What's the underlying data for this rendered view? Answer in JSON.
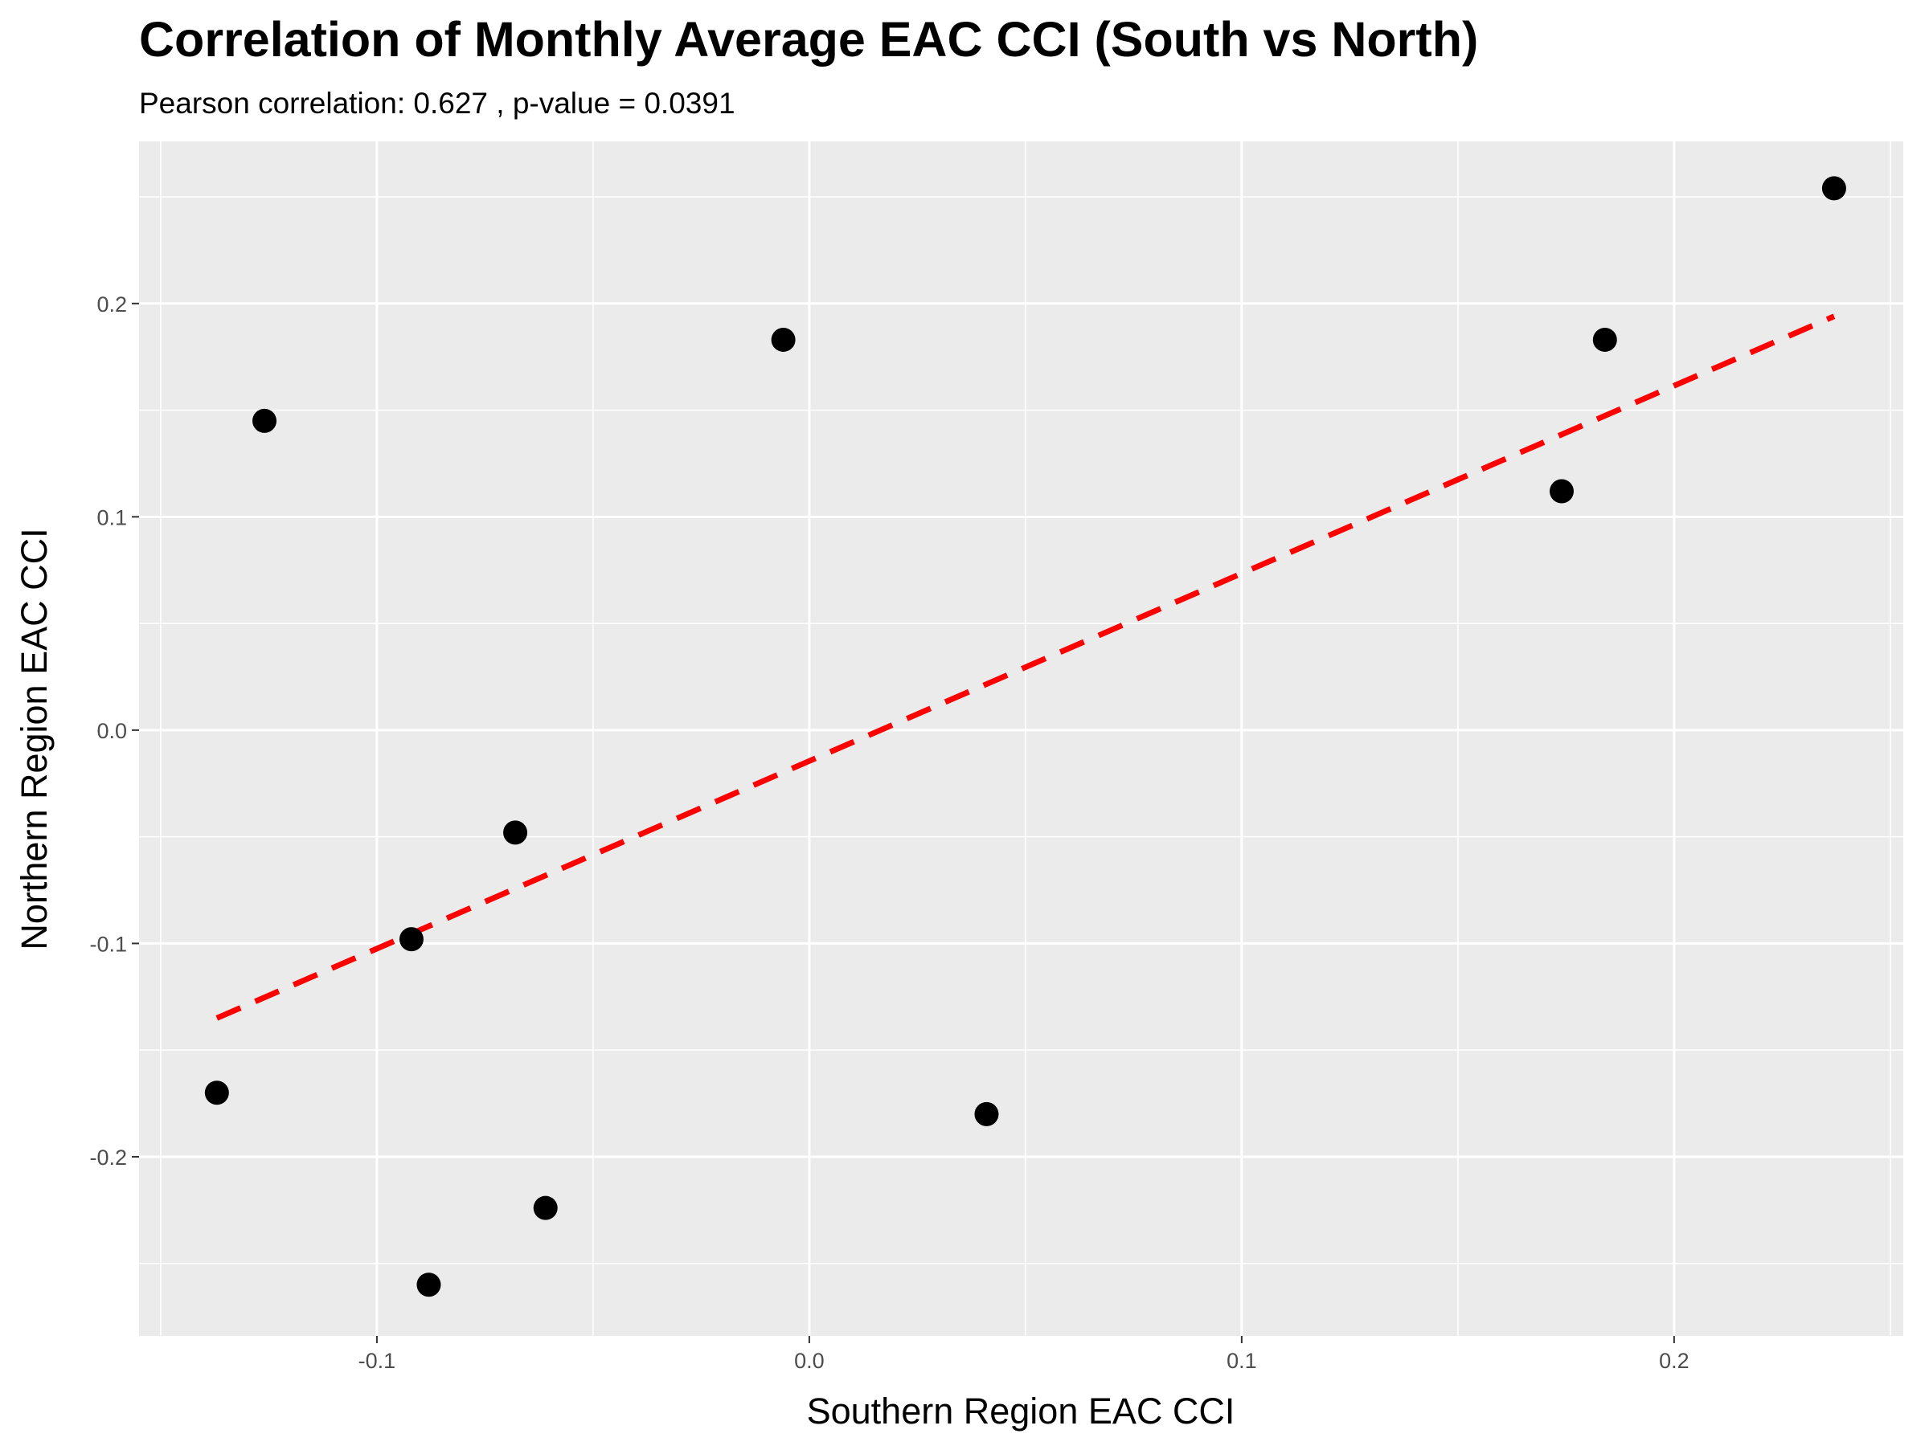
{
  "chart_data": {
    "type": "scatter",
    "title": "Correlation of Monthly Average EAC CCI (South vs North)",
    "subtitle": "Pearson correlation: 0.627 , p-value =  0.0391",
    "xlabel": "Southern Region EAC CCI",
    "ylabel": "Northern Region EAC CCI",
    "xlim": [
      -0.155,
      0.253
    ],
    "ylim": [
      -0.284,
      0.276
    ],
    "x_ticks": [
      -0.1,
      0.0,
      0.1,
      0.2
    ],
    "x_tick_labels": [
      "-0.1",
      "0.0",
      "0.1",
      "0.2"
    ],
    "y_ticks": [
      -0.2,
      -0.1,
      0.0,
      0.1,
      0.2
    ],
    "y_tick_labels": [
      "-0.2",
      "-0.1",
      "0.0",
      "0.1",
      "0.2"
    ],
    "grid": true,
    "points": [
      {
        "x": -0.137,
        "y": -0.17
      },
      {
        "x": -0.126,
        "y": 0.145
      },
      {
        "x": -0.092,
        "y": -0.098
      },
      {
        "x": -0.088,
        "y": -0.26
      },
      {
        "x": -0.068,
        "y": -0.048
      },
      {
        "x": -0.061,
        "y": -0.224
      },
      {
        "x": -0.006,
        "y": 0.183
      },
      {
        "x": 0.041,
        "y": -0.18
      },
      {
        "x": 0.174,
        "y": 0.112
      },
      {
        "x": 0.184,
        "y": 0.183
      },
      {
        "x": 0.237,
        "y": 0.254
      }
    ],
    "trend_line": {
      "x": [
        -0.137,
        0.237
      ],
      "y": [
        -0.135,
        0.194
      ]
    },
    "colors": {
      "points": "#000000",
      "trend_line": "#ff0000",
      "panel": "#ebebeb",
      "grid": "#ffffff"
    }
  }
}
